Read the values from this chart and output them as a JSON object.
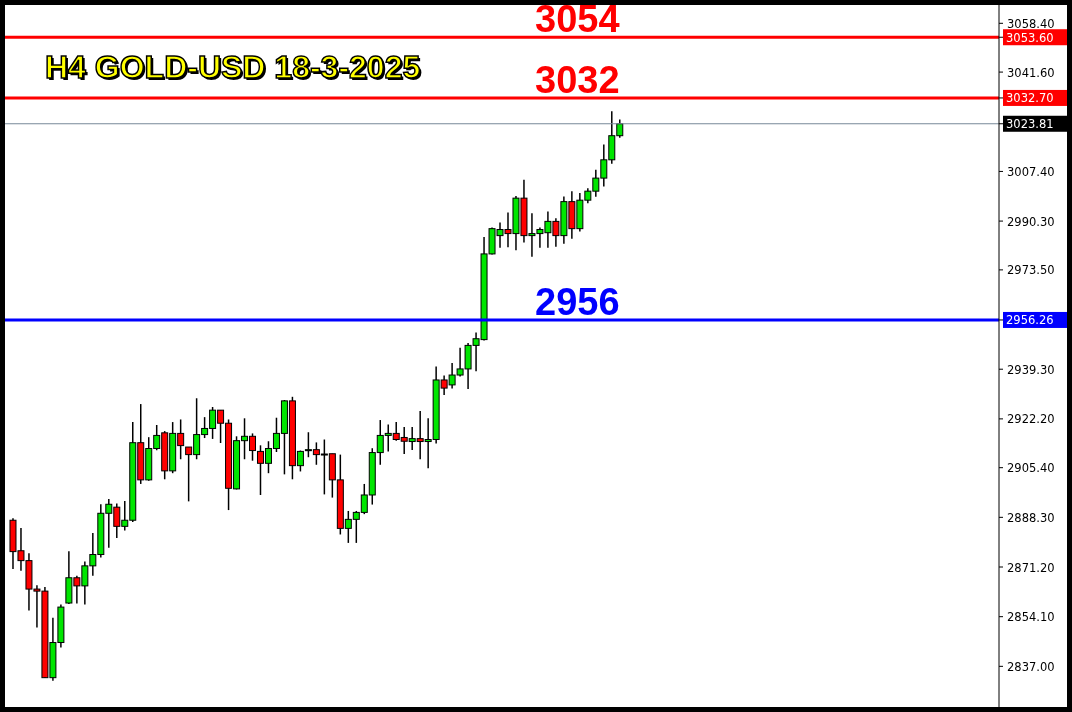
{
  "chart_data": {
    "type": "candlestick",
    "title": "H4 GOLD-USD 18-3-2025",
    "categories": [
      null,
      null,
      null,
      null,
      null,
      null,
      null,
      null,
      null,
      null,
      null,
      null,
      null,
      null,
      null,
      null,
      null,
      null,
      null,
      null,
      null,
      null,
      null,
      null,
      null,
      null,
      null,
      null,
      null,
      null,
      null,
      null,
      null,
      null,
      null,
      null,
      null,
      null,
      null,
      null,
      null,
      null,
      null,
      null,
      null,
      null,
      null,
      null,
      null,
      null,
      null,
      null,
      null,
      null,
      null,
      null,
      null,
      null,
      null,
      null,
      null,
      null,
      null,
      null,
      null,
      null,
      null,
      null,
      null,
      null,
      null,
      null,
      null,
      null,
      null,
      null,
      null,
      null,
      null,
      null,
      null,
      null,
      null,
      null,
      null,
      null,
      null,
      null,
      null,
      null,
      null,
      null,
      null,
      null,
      null,
      null,
      null,
      null,
      null,
      null,
      null,
      null,
      null,
      null,
      null,
      null,
      null,
      null,
      null,
      null,
      null,
      null,
      null,
      null,
      null,
      null,
      null,
      null,
      null,
      null,
      null,
      null,
      null,
      null
    ],
    "ohlc": [
      [
        2887.3,
        2888,
        2870.5,
        2876.5
      ],
      [
        2876.8,
        2884.6,
        2869.9,
        2873.4
      ],
      [
        2873.4,
        2875.9,
        2856.2,
        2863.6
      ],
      [
        2863.6,
        2864.9,
        2850.4,
        2862.9
      ],
      [
        2862.9,
        2864.3,
        2833,
        2833.1
      ],
      [
        2833.1,
        2853.7,
        2832,
        2845.2
      ],
      [
        2845.2,
        2858.3,
        2843.5,
        2857.4
      ],
      [
        2858.8,
        2876.6,
        2858.5,
        2867.5
      ],
      [
        2867.5,
        2868.2,
        2858.6,
        2864.7
      ],
      [
        2864.7,
        2873.1,
        2858.3,
        2871.6
      ],
      [
        2871.6,
        2882.9,
        2868.2,
        2875.5
      ],
      [
        2875.5,
        2892.8,
        2874.5,
        2889.7
      ],
      [
        2889.7,
        2894.6,
        2877.8,
        2892.8
      ],
      [
        2891.8,
        2893.1,
        2881.2,
        2885.2
      ],
      [
        2885.2,
        2893.9,
        2883.8,
        2887.3
      ],
      [
        2887.3,
        2921.1,
        2886.7,
        2914
      ],
      [
        2914,
        2927.3,
        2899.8,
        2901.2
      ],
      [
        2901.2,
        2915.9,
        2900.9,
        2912
      ],
      [
        2912,
        2920.1,
        2911.4,
        2916.5
      ],
      [
        2917.4,
        2918,
        2901.4,
        2904.3
      ],
      [
        2904.3,
        2921.1,
        2903.5,
        2917.2
      ],
      [
        2917.2,
        2922,
        2908.3,
        2913
      ],
      [
        2912.5,
        2912.5,
        2893.8,
        2909.9
      ],
      [
        2909.9,
        2929.3,
        2908.3,
        2916.8
      ],
      [
        2916.8,
        2922.8,
        2915.6,
        2918.9
      ],
      [
        2918.9,
        2926.3,
        2915.3,
        2925.2
      ],
      [
        2925.2,
        2925.2,
        2913.9,
        2920.7
      ],
      [
        2920.7,
        2922,
        2890.8,
        2898.3
      ],
      [
        2898.1,
        2916.2,
        2897.9,
        2914.7
      ],
      [
        2914.7,
        2922.4,
        2908.3,
        2916.2
      ],
      [
        2916.2,
        2917.2,
        2907.8,
        2911.3
      ],
      [
        2911,
        2913.1,
        2896,
        2906.9
      ],
      [
        2906.9,
        2914.5,
        2903.5,
        2912
      ],
      [
        2912,
        2922.6,
        2910.8,
        2917.2
      ],
      [
        2917.2,
        2928.7,
        2903.1,
        2928.4
      ],
      [
        2928.4,
        2929.8,
        2901.4,
        2906.1
      ],
      [
        2906.1,
        2911.3,
        2904.1,
        2911
      ],
      [
        2911.6,
        2917.6,
        2909,
        2911.6
      ],
      [
        2911.6,
        2914.1,
        2906.4,
        2909.9
      ],
      [
        2910.1,
        2915.1,
        2896.2,
        2910.1
      ],
      [
        2910.2,
        2910.2,
        2895.1,
        2901.2
      ],
      [
        2901.2,
        2909.9,
        2882.4,
        2884.5
      ],
      [
        2884.5,
        2890.5,
        2879.5,
        2887.6
      ],
      [
        2887.6,
        2890.5,
        2879.5,
        2890
      ],
      [
        2890,
        2899.8,
        2889.4,
        2896
      ],
      [
        2896,
        2912.1,
        2892.7,
        2910.6
      ],
      [
        2910.6,
        2921.8,
        2906.4,
        2916.5
      ],
      [
        2916.5,
        2920.3,
        2911,
        2917.2
      ],
      [
        2917.2,
        2921.1,
        2914.7,
        2915.1
      ],
      [
        2915.8,
        2919.4,
        2910.1,
        2914.5
      ],
      [
        2914.4,
        2919.4,
        2911.5,
        2915.4
      ],
      [
        2915.4,
        2924.9,
        2908.3,
        2914.4
      ],
      [
        2914.4,
        2922.4,
        2905.2,
        2915.1
      ],
      [
        2915.1,
        2940.2,
        2913.7,
        2935.6
      ],
      [
        2935.6,
        2937.1,
        2930.4,
        2932.8
      ],
      [
        2933.9,
        2941.4,
        2932.7,
        2937.3
      ],
      [
        2937.3,
        2946.7,
        2936.8,
        2939.4
      ],
      [
        2939.4,
        2948.3,
        2932.5,
        2947.5
      ],
      [
        2947.5,
        2951.9,
        2938.6,
        2949.8
      ],
      [
        2949.5,
        2984.8,
        2949.2,
        2979
      ],
      [
        2979,
        2988.1,
        2978.8,
        2987.7
      ],
      [
        2985.3,
        2989.8,
        2981.1,
        2987.4
      ],
      [
        2987.4,
        2993.3,
        2981.3,
        2986
      ],
      [
        2986,
        2998.9,
        2980.3,
        2998.2
      ],
      [
        2998.2,
        3004.5,
        2982.9,
        2985.3
      ],
      [
        2985.3,
        2993,
        2978,
        2986
      ],
      [
        2986,
        2988.1,
        2981.1,
        2987.4
      ],
      [
        2986.3,
        2993.6,
        2981.1,
        2990.2
      ],
      [
        2990.2,
        2991.3,
        2981.5,
        2985.3
      ],
      [
        2985.3,
        2998.8,
        2982.5,
        2997
      ],
      [
        2997,
        3000.6,
        2984.2,
        2987.7
      ],
      [
        2987.7,
        3000,
        2986.7,
        2997.5
      ],
      [
        2997.5,
        3001.6,
        2996.4,
        3000.6
      ],
      [
        3000.6,
        3008,
        2998.7,
        3005.1
      ],
      [
        3005.1,
        3016.7,
        3002.2,
        3011.4
      ],
      [
        3011.4,
        3028.1,
        3010,
        3019.7
      ],
      [
        3019.7,
        3025.3,
        3019,
        3023.8
      ],
      null,
      null,
      null,
      null,
      null,
      null,
      null,
      null,
      null,
      null,
      null,
      null,
      null,
      null,
      null,
      null,
      null,
      null,
      null,
      null,
      null,
      null,
      null,
      null,
      null,
      null,
      null,
      null,
      null,
      null,
      null,
      null,
      null,
      null,
      null,
      null,
      null,
      null,
      null,
      null,
      null,
      null,
      null,
      null,
      null,
      null,
      null
    ],
    "colors": [
      "#ff0000",
      "#ff0000",
      "#ff0000",
      "#ff0000",
      "#ff0000",
      "#00e600",
      "#00e600",
      "#00e600",
      "#ff0000",
      "#00e600",
      "#00e600",
      "#00e600",
      "#00e600",
      "#ff0000",
      "#00e600",
      "#00e600",
      "#ff0000",
      "#00e600",
      "#00e600",
      "#ff0000",
      "#00e600",
      "#ff0000",
      "#ff0000",
      "#00e600",
      "#00e600",
      "#00e600",
      "#ff0000",
      "#ff0000",
      "#00e600",
      "#00e600",
      "#ff0000",
      "#ff0000",
      "#00e600",
      "#00e600",
      "#00e600",
      "#ff0000",
      "#00e600",
      "#00e600",
      "#ff0000",
      "#00e600",
      "#ff0000",
      "#ff0000",
      "#00e600",
      "#00e600",
      "#00e600",
      "#00e600",
      "#00e600",
      "#00e600",
      "#ff0000",
      "#ff0000",
      "#00e600",
      "#ff0000",
      "#00e600",
      "#00e600",
      "#ff0000",
      "#00e600",
      "#00e600",
      "#00e600",
      "#00e600",
      "#00e600",
      "#00e600",
      "#00e600",
      "#ff0000",
      "#00e600",
      "#ff0000",
      "#00e600",
      "#00e600",
      "#00e600",
      "#ff0000",
      "#00e600",
      "#ff0000",
      "#00e600",
      "#00e600",
      "#00e600",
      "#00e600",
      "#00e600",
      "#00e600",
      null,
      null,
      null,
      null,
      null,
      null,
      null,
      null,
      null,
      null,
      null,
      null,
      null,
      null,
      null,
      null,
      null,
      null,
      null,
      null,
      null,
      null,
      null,
      null,
      null,
      null,
      null,
      null,
      null,
      null,
      null,
      null,
      null,
      null,
      null,
      null,
      null,
      null,
      null,
      null,
      null,
      null,
      null,
      null,
      null,
      null,
      null
    ],
    "ylim": [
      2823,
      3064.7
    ],
    "yticks": [
      {
        "value": 2837,
        "label": "2837.00"
      },
      {
        "value": 2854.1,
        "label": "2854.10"
      },
      {
        "value": 2871.2,
        "label": "2871.20"
      },
      {
        "value": 2888.3,
        "label": "2888.30"
      },
      {
        "value": 2905.4,
        "label": "2905.40"
      },
      {
        "value": 2922.2,
        "label": "2922.20"
      },
      {
        "value": 2939.3,
        "label": "2939.30"
      },
      {
        "value": 2956.26,
        "label": "2956.26"
      },
      {
        "value": 2973.5,
        "label": "2973.50"
      },
      {
        "value": 2990.3,
        "label": "2990.30"
      },
      {
        "value": 3007.4,
        "label": "3007.40"
      },
      {
        "value": 3023.81,
        "label": "3023.81"
      },
      {
        "value": 3032.7,
        "label": "3032.70"
      },
      {
        "value": 3041.6,
        "label": "3041.60"
      },
      {
        "value": 3053.6,
        "label": "3053.60"
      },
      {
        "value": 3058.4,
        "label": "3058.40"
      }
    ],
    "ref_lines": [
      {
        "axis": "y",
        "value": 3053.6,
        "color": "#ff0000"
      },
      {
        "axis": "y",
        "value": 3032.7,
        "color": "#ff0000"
      },
      {
        "axis": "y",
        "value": 3023.81,
        "color": "#778899"
      },
      {
        "axis": "y",
        "value": 2956.26,
        "color": "#0000ff"
      }
    ],
    "annotations": [
      {
        "text": "3054",
        "y": 3053.6
      },
      {
        "text": "3032",
        "y": 3032.7
      },
      {
        "text": "2956",
        "y": 2956.26
      }
    ],
    "grid": false,
    "legend": false
  }
}
